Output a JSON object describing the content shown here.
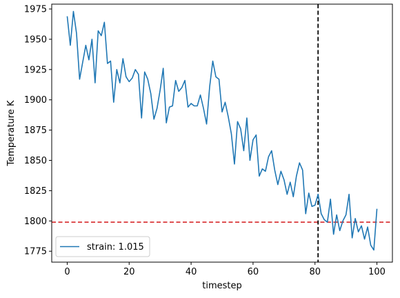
{
  "chart_data": {
    "type": "line",
    "title": "",
    "xlabel": "timestep",
    "ylabel": "Temperature K",
    "xlim": [
      -5,
      105
    ],
    "ylim": [
      1766,
      1979
    ],
    "xticks": [
      0,
      20,
      40,
      60,
      80,
      100
    ],
    "yticks": [
      1775,
      1800,
      1825,
      1850,
      1875,
      1900,
      1925,
      1950,
      1975
    ],
    "grid": false,
    "legend_position": "lower-left",
    "series": [
      {
        "name": "strain: 1.015",
        "color": "#1f77b4",
        "x": [
          0,
          1,
          2,
          3,
          4,
          5,
          6,
          7,
          8,
          9,
          10,
          11,
          12,
          13,
          14,
          15,
          16,
          17,
          18,
          19,
          20,
          21,
          22,
          23,
          24,
          25,
          26,
          27,
          28,
          29,
          30,
          31,
          32,
          33,
          34,
          35,
          36,
          37,
          38,
          39,
          40,
          41,
          42,
          43,
          44,
          45,
          46,
          47,
          48,
          49,
          50,
          51,
          52,
          53,
          54,
          55,
          56,
          57,
          58,
          59,
          60,
          61,
          62,
          63,
          64,
          65,
          66,
          67,
          68,
          69,
          70,
          71,
          72,
          73,
          74,
          75,
          76,
          77,
          78,
          79,
          80,
          81,
          82,
          83,
          84,
          85,
          86,
          87,
          88,
          89,
          90,
          91,
          92,
          93,
          94,
          95,
          96,
          97,
          98,
          99,
          100
        ],
        "y": [
          1969,
          1945,
          1973,
          1955,
          1917,
          1931,
          1945,
          1933,
          1950,
          1914,
          1957,
          1953,
          1964,
          1930,
          1932,
          1898,
          1925,
          1914,
          1934,
          1919,
          1915,
          1918,
          1925,
          1921,
          1885,
          1923,
          1917,
          1905,
          1884,
          1893,
          1908,
          1926,
          1881,
          1894,
          1895,
          1916,
          1907,
          1910,
          1916,
          1894,
          1897,
          1895,
          1895,
          1904,
          1893,
          1880,
          1911,
          1932,
          1919,
          1917,
          1890,
          1898,
          1886,
          1872,
          1847,
          1882,
          1876,
          1858,
          1885,
          1850,
          1867,
          1871,
          1837,
          1843,
          1841,
          1853,
          1858,
          1842,
          1830,
          1841,
          1834,
          1822,
          1832,
          1820,
          1837,
          1848,
          1842,
          1806,
          1823,
          1812,
          1813,
          1822,
          1806,
          1801,
          1799,
          1818,
          1789,
          1805,
          1792,
          1800,
          1805,
          1822,
          1786,
          1802,
          1791,
          1796,
          1785,
          1795,
          1780,
          1776,
          1810
        ]
      }
    ],
    "reference_lines": [
      {
        "orientation": "horizontal",
        "value": 1799,
        "color": "#d62728",
        "style": "dashed"
      },
      {
        "orientation": "vertical",
        "value": 81,
        "color": "#000000",
        "style": "dashed"
      }
    ]
  }
}
